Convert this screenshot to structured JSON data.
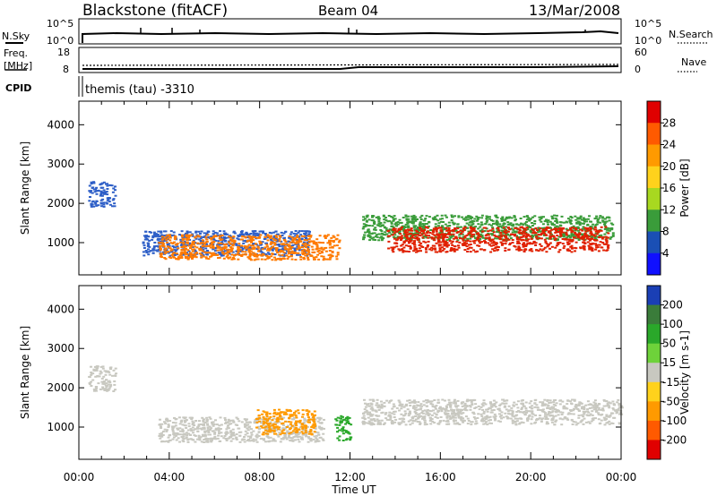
{
  "header": {
    "station": "Blackstone (fitACF)",
    "beam": "Beam 04",
    "date": "13/Mar/2008"
  },
  "status_panels": {
    "nsky": {
      "label": "N.Sky",
      "left_ticks": [
        "10^5",
        "10^0"
      ],
      "right_ticks": [
        "10^5",
        "10^0"
      ],
      "right_label": "N.Search"
    },
    "freq": {
      "label_top": "Freq.",
      "label_bottom": "[MHz]",
      "left_ticks": [
        "18",
        "8"
      ],
      "right_ticks": [
        "60",
        "0"
      ],
      "right_label": "Nave"
    },
    "cpid": {
      "label": "CPID",
      "value": "themis (tau) -3310"
    }
  },
  "time_axis": {
    "ticks": [
      "00:00",
      "04:00",
      "08:00",
      "12:00",
      "16:00",
      "20:00",
      "00:00"
    ],
    "label": "Time UT"
  },
  "chart_data": [
    {
      "type": "heatmap",
      "panel": "power",
      "ylabel": "Slant Range [km]",
      "ylim": [
        180,
        4600
      ],
      "yticks": [
        1000,
        2000,
        3000,
        4000
      ],
      "xlim_hours": [
        0,
        24
      ],
      "colorbar": {
        "label": "Power [dB]",
        "ticks": [
          "28",
          "24",
          "20",
          "16",
          "12",
          "8",
          "4"
        ],
        "colors": [
          "#e00000",
          "#ff5a00",
          "#ff9a00",
          "#ffd21c",
          "#a8d820",
          "#3a9c3a",
          "#1a4fb5",
          "#1010ff"
        ]
      },
      "regions": [
        {
          "start_h": 0.4,
          "end_h": 1.6,
          "center_km": 2250,
          "color": "#2e5fc7"
        },
        {
          "start_h": 2.8,
          "end_h": 10.2,
          "center_km": 1000,
          "color": "#2e5fc7"
        },
        {
          "start_h": 3.5,
          "end_h": 11.5,
          "center_km": 900,
          "color": "#ff7a00"
        },
        {
          "start_h": 12.5,
          "end_h": 23.6,
          "center_km": 1400,
          "color": "#3a9c3a"
        },
        {
          "start_h": 13.6,
          "end_h": 23.4,
          "center_km": 1100,
          "color": "#e02000"
        }
      ]
    },
    {
      "type": "heatmap",
      "panel": "velocity",
      "ylabel": "Slant Range [km]",
      "ylim": [
        180,
        4600
      ],
      "yticks": [
        1000,
        2000,
        3000,
        4000
      ],
      "xlim_hours": [
        0,
        24
      ],
      "colorbar": {
        "label": "Velocity [m s-1]",
        "ticks": [
          "200",
          "100",
          "50",
          "15",
          "-15",
          "-50",
          "-100",
          "-200"
        ],
        "colors": [
          "#1a3fb5",
          "#3a7c3a",
          "#2aa82a",
          "#6ed23a",
          "#c8c8c0",
          "#ffd21c",
          "#ff9a00",
          "#ff5a00",
          "#e00000"
        ]
      },
      "regions": [
        {
          "start_h": 0.4,
          "end_h": 1.6,
          "center_km": 2250,
          "color": "#c8c8c0"
        },
        {
          "start_h": 3.5,
          "end_h": 10.8,
          "center_km": 950,
          "color": "#c8c8c0"
        },
        {
          "start_h": 7.8,
          "end_h": 10.4,
          "center_km": 1150,
          "color": "#ff9a00"
        },
        {
          "start_h": 11.3,
          "end_h": 12.0,
          "center_km": 1000,
          "color": "#2aa82a"
        },
        {
          "start_h": 12.5,
          "end_h": 24.0,
          "center_km": 1400,
          "color": "#c8c8c0"
        }
      ]
    }
  ]
}
